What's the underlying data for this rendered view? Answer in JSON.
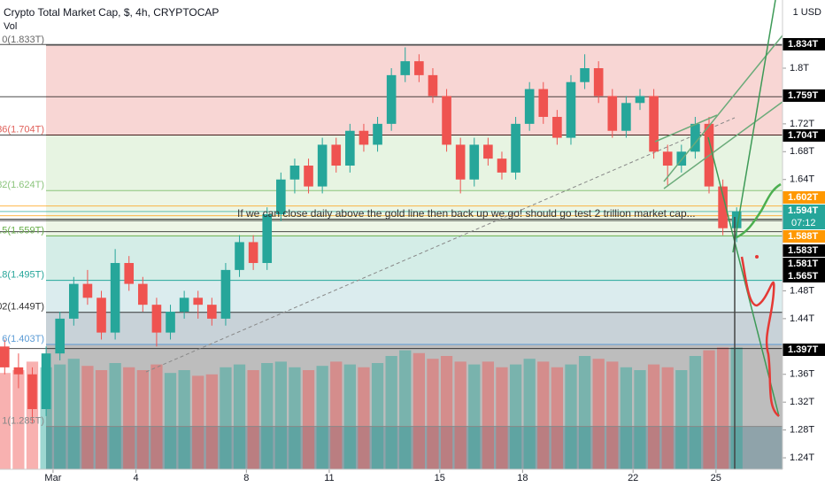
{
  "chart_data": {
    "type": "candlestick",
    "title": "Crypto Total Market Cap, $, 4h, CRYPTOCAP",
    "subtitle": "Vol",
    "currency": "1 USD",
    "annotation": "If we can close daily above the gold line then back up we go! should go test 2 trillion market cap...",
    "countdown": "07:12",
    "up_color": "#26a69a",
    "down_color": "#ef5350",
    "xlim": [
      -0.92,
      27.41
    ],
    "xticks": [
      {
        "value": 1,
        "label": "Mar"
      },
      4,
      8,
      11,
      15,
      18,
      22,
      25
    ],
    "ylim": [
      1.2235,
      1.898
    ],
    "yticks": [
      {
        "value": 1.24,
        "label": "1.24T"
      },
      {
        "value": 1.28,
        "label": "1.28T"
      },
      {
        "value": 1.32,
        "label": "1.32T"
      },
      {
        "value": 1.36,
        "label": "1.36T"
      },
      {
        "value": 1.44,
        "label": "1.44T"
      },
      {
        "value": 1.48,
        "label": "1.48T"
      },
      {
        "value": 1.64,
        "label": "1.64T"
      },
      {
        "value": 1.68,
        "label": "1.68T"
      },
      {
        "value": 1.72,
        "label": "1.72T"
      },
      {
        "value": 1.8,
        "label": "1.8T"
      }
    ],
    "vlim": [
      0,
      100
    ],
    "x": [
      -0.75,
      -0.25,
      0.25,
      0.75,
      1.25,
      1.75,
      2.25,
      2.75,
      3.25,
      3.75,
      4.25,
      4.75,
      5.25,
      5.75,
      6.25,
      6.75,
      7.25,
      7.75,
      8.25,
      8.75,
      9.25,
      9.75,
      10.25,
      10.75,
      11.25,
      11.75,
      12.25,
      12.75,
      13.25,
      13.75,
      14.25,
      14.75,
      15.25,
      15.75,
      16.25,
      16.75,
      17.25,
      17.75,
      18.25,
      18.75,
      19.25,
      19.75,
      20.25,
      20.75,
      21.25,
      21.75,
      22.25,
      22.75,
      23.25,
      23.75,
      24.25,
      24.75,
      25.25,
      25.75
    ],
    "open": [
      1.4,
      1.37,
      1.36,
      1.31,
      1.39,
      1.44,
      1.49,
      1.47,
      1.42,
      1.52,
      1.49,
      1.46,
      1.42,
      1.45,
      1.47,
      1.46,
      1.44,
      1.51,
      1.55,
      1.52,
      1.59,
      1.64,
      1.66,
      1.63,
      1.69,
      1.66,
      1.71,
      1.69,
      1.72,
      1.79,
      1.81,
      1.79,
      1.76,
      1.69,
      1.64,
      1.69,
      1.67,
      1.65,
      1.72,
      1.77,
      1.73,
      1.7,
      1.78,
      1.8,
      1.76,
      1.71,
      1.75,
      1.76,
      1.68,
      1.66,
      1.68,
      1.72,
      1.63,
      1.57
    ],
    "high": [
      1.41,
      1.39,
      1.37,
      1.4,
      1.45,
      1.5,
      1.51,
      1.48,
      1.54,
      1.53,
      1.5,
      1.47,
      1.46,
      1.48,
      1.48,
      1.47,
      1.52,
      1.56,
      1.56,
      1.6,
      1.65,
      1.67,
      1.67,
      1.7,
      1.7,
      1.72,
      1.72,
      1.73,
      1.8,
      1.83,
      1.82,
      1.8,
      1.77,
      1.7,
      1.7,
      1.7,
      1.68,
      1.73,
      1.78,
      1.78,
      1.74,
      1.79,
      1.82,
      1.81,
      1.77,
      1.76,
      1.77,
      1.77,
      1.69,
      1.69,
      1.73,
      1.73,
      1.64,
      1.6
    ],
    "low": [
      1.36,
      1.34,
      1.29,
      1.3,
      1.38,
      1.43,
      1.46,
      1.41,
      1.41,
      1.48,
      1.45,
      1.4,
      1.41,
      1.44,
      1.44,
      1.43,
      1.43,
      1.5,
      1.51,
      1.51,
      1.58,
      1.62,
      1.62,
      1.62,
      1.65,
      1.65,
      1.68,
      1.68,
      1.71,
      1.78,
      1.78,
      1.75,
      1.68,
      1.62,
      1.63,
      1.66,
      1.64,
      1.64,
      1.71,
      1.72,
      1.69,
      1.69,
      1.77,
      1.75,
      1.7,
      1.7,
      1.74,
      1.67,
      1.63,
      1.65,
      1.67,
      1.62,
      1.56,
      1.55
    ],
    "close": [
      1.37,
      1.36,
      1.31,
      1.39,
      1.44,
      1.49,
      1.47,
      1.42,
      1.52,
      1.49,
      1.46,
      1.42,
      1.45,
      1.47,
      1.46,
      1.44,
      1.51,
      1.55,
      1.52,
      1.59,
      1.64,
      1.66,
      1.63,
      1.69,
      1.66,
      1.71,
      1.69,
      1.72,
      1.79,
      1.81,
      1.79,
      1.76,
      1.69,
      1.64,
      1.69,
      1.67,
      1.65,
      1.72,
      1.77,
      1.73,
      1.7,
      1.78,
      1.8,
      1.76,
      1.71,
      1.75,
      1.76,
      1.68,
      1.66,
      1.68,
      1.72,
      1.63,
      1.57,
      1.594
    ],
    "volume": [
      68,
      70,
      76,
      72,
      74,
      78,
      73,
      70,
      75,
      72,
      70,
      74,
      68,
      70,
      66,
      67,
      72,
      74,
      70,
      75,
      76,
      72,
      70,
      73,
      76,
      74,
      72,
      75,
      80,
      84,
      82,
      78,
      80,
      76,
      74,
      76,
      72,
      74,
      78,
      76,
      72,
      74,
      80,
      78,
      76,
      72,
      70,
      74,
      72,
      70,
      80,
      84,
      86,
      86
    ],
    "fib_levels": [
      {
        "label": "0(1.833T)",
        "value": 1.833,
        "color": "#666666",
        "fill": "#f8d6d4"
      },
      {
        "label": "36(1.704T)",
        "value": 1.704,
        "color": "#e0605a",
        "fill": "#e7f4e2"
      },
      {
        "label": "82(1.624T)",
        "value": 1.624,
        "color": "#8bc47c",
        "fill": "#edf6e6"
      },
      {
        "label": ".5(1.559T)",
        "value": 1.559,
        "color": "#6ab04c",
        "fill": "#d4ede7"
      },
      {
        "label": "18(1.495T)",
        "value": 1.495,
        "color": "#26a69a",
        "fill": "#dbecee"
      },
      {
        "label": "02(1.449T)",
        "value": 1.449,
        "color": "#333333",
        "fill": "#c8d2d8"
      },
      {
        "label": "6(1.403T)",
        "value": 1.403,
        "color": "#5b9bd5",
        "fill": "#bdbdbd"
      },
      {
        "label": "1(1.285T)",
        "value": 1.285,
        "color": "#888888",
        "fill": "#8fa3aa"
      }
    ],
    "price_labels": [
      {
        "value": 1.834,
        "label": "1.834T",
        "color": "#000000"
      },
      {
        "value": 1.759,
        "label": "1.759T",
        "color": "#000000"
      },
      {
        "value": 1.704,
        "label": "1.704T",
        "color": "#000000"
      },
      {
        "value": 1.602,
        "label": "1.602T",
        "color": "#ff9800"
      },
      {
        "value": 1.594,
        "label": "1.594T",
        "color": "#26a69a"
      },
      {
        "value": 1.588,
        "label": "1.588T",
        "color": "#ff9800"
      },
      {
        "value": 1.583,
        "label": "1.583T",
        "color": "#000000"
      },
      {
        "value": 1.581,
        "label": "1.581T",
        "color": "#000000"
      },
      {
        "value": 1.565,
        "label": "1.565T",
        "color": "#000000"
      },
      {
        "value": 1.397,
        "label": "1.397T",
        "color": "#000000"
      }
    ]
  }
}
